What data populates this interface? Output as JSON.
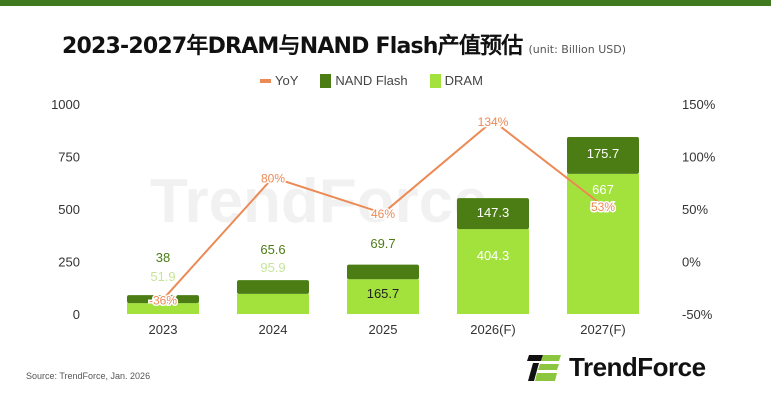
{
  "header": {
    "title": "2023-2027年DRAM与NAND Flash产值预估",
    "unit": "(unit: Billion USD)"
  },
  "footer": {
    "source": "Source: TrendForce, Jan. 2026",
    "logo_text": "TrendForce"
  },
  "colors": {
    "dram": "#a3e23c",
    "nand": "#4c7d14",
    "yoy": "#ec8a55",
    "topbar": "#3f7a1e"
  },
  "chart_data": {
    "type": "stacked bar + line",
    "categories": [
      "2023",
      "2024",
      "2025",
      "2026(F)",
      "2027(F)"
    ],
    "series": [
      {
        "name": "DRAM",
        "type": "bar",
        "axis": "left",
        "values": [
          51.9,
          95.9,
          165.7,
          404.3,
          667
        ]
      },
      {
        "name": "NAND Flash",
        "type": "bar",
        "axis": "left",
        "values": [
          38,
          65.6,
          69.7,
          147.3,
          175.7
        ]
      },
      {
        "name": "YoY",
        "type": "line",
        "axis": "right",
        "values": [
          -36,
          80,
          46,
          134,
          53
        ],
        "labels": [
          "-36%",
          "80%",
          "46%",
          "134%",
          "53%"
        ]
      }
    ],
    "legend": [
      "YoY",
      "NAND Flash",
      "DRAM"
    ],
    "legend_position": "top",
    "y_left": {
      "range": [
        0,
        1000
      ],
      "ticks": [
        "0",
        "250",
        "500",
        "750",
        "1000"
      ]
    },
    "y_right": {
      "range": [
        -50,
        150
      ],
      "ticks": [
        "-50%",
        "0%",
        "50%",
        "100%",
        "150%"
      ]
    },
    "grid": false
  }
}
